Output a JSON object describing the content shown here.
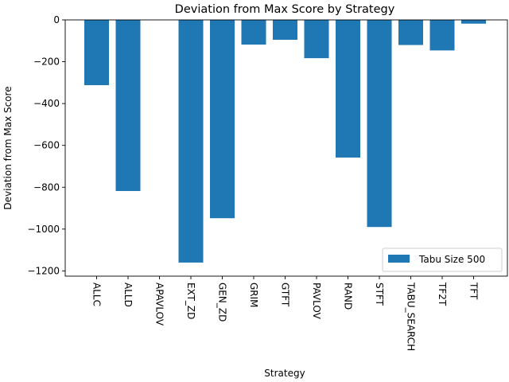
{
  "chart_data": {
    "type": "bar",
    "title": "Deviation from Max Score by Strategy",
    "xlabel": "Strategy",
    "ylabel": "Deviation from Max Score",
    "categories": [
      "ALLC",
      "ALLD",
      "APAVLOV",
      "EXT_ZD",
      "GEN_ZD",
      "GRIM",
      "GTFT",
      "PAVLOV",
      "RAND",
      "STFT",
      "TABU_SEARCH",
      "TF2T",
      "TFT"
    ],
    "series": [
      {
        "name": "Tabu Size 500",
        "color": "#1f77b4",
        "values": [
          -312,
          -818,
          0,
          -1160,
          -948,
          -118,
          -95,
          -183,
          -658,
          -990,
          -120,
          -146,
          -18
        ]
      }
    ],
    "ylim": [
      -1225,
      0
    ],
    "yticks": [
      0,
      -200,
      -400,
      -600,
      -800,
      -1000,
      -1200
    ],
    "ytick_labels": [
      "0",
      "−200",
      "−400",
      "−600",
      "−800",
      "−1000",
      "−1200"
    ],
    "legend_position": "lower-right",
    "grid": false
  }
}
